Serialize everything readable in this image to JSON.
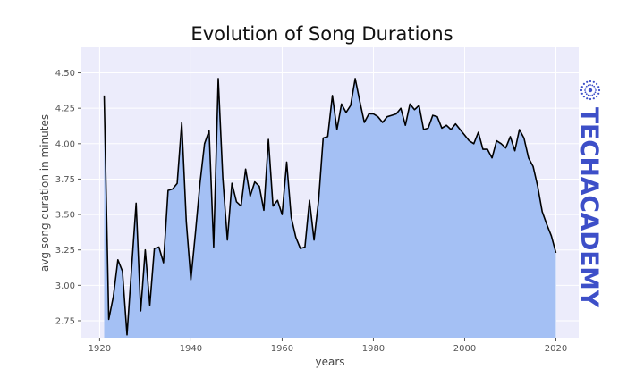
{
  "chart_data": {
    "type": "area",
    "title": "Evolution of Song Durations",
    "xlabel": "years",
    "ylabel": "avg song duration in minutes",
    "xlim": [
      1916,
      2025
    ],
    "ylim": [
      2.63,
      4.68
    ],
    "x_ticks": [
      1920,
      1940,
      1960,
      1980,
      2000,
      2020
    ],
    "x_tick_labels": [
      "1920",
      "1940",
      "1960",
      "1980",
      "2000",
      "2020"
    ],
    "y_ticks": [
      2.75,
      3.0,
      3.25,
      3.5,
      3.75,
      4.0,
      4.25,
      4.5
    ],
    "y_tick_labels": [
      "2.75",
      "3.00",
      "3.25",
      "3.50",
      "3.75",
      "4.00",
      "4.25",
      "4.50"
    ],
    "grid": true,
    "fill_color": "#a4c0f4",
    "line_color": "#000000",
    "plot_background": "#ececfb",
    "series": [
      {
        "x": [
          1921,
          1922,
          1923,
          1924,
          1925,
          1926,
          1927,
          1928,
          1929,
          1930,
          1931,
          1932,
          1933,
          1934,
          1935,
          1936,
          1937,
          1938,
          1939,
          1940,
          1941,
          1942,
          1943,
          1944,
          1945,
          1946,
          1947,
          1948,
          1949,
          1950,
          1951,
          1952,
          1953,
          1954,
          1955,
          1956,
          1957,
          1958,
          1959,
          1960,
          1961,
          1962,
          1963,
          1964,
          1965,
          1966,
          1967,
          1968,
          1969,
          1970,
          1971,
          1972,
          1973,
          1974,
          1975,
          1976,
          1977,
          1978,
          1979,
          1980,
          1981,
          1982,
          1983,
          1984,
          1985,
          1986,
          1987,
          1988,
          1989,
          1990,
          1991,
          1992,
          1993,
          1994,
          1995,
          1996,
          1997,
          1998,
          1999,
          2000,
          2001,
          2002,
          2003,
          2004,
          2005,
          2006,
          2007,
          2008,
          2009,
          2010,
          2011,
          2012,
          2013,
          2014,
          2015,
          2016,
          2017,
          2018,
          2019,
          2020
        ],
        "values": [
          4.34,
          2.76,
          2.92,
          3.18,
          3.1,
          2.65,
          3.12,
          3.58,
          2.82,
          3.25,
          2.86,
          3.26,
          3.27,
          3.16,
          3.67,
          3.68,
          3.72,
          4.15,
          3.45,
          3.04,
          3.37,
          3.72,
          4.0,
          4.09,
          3.27,
          4.46,
          3.76,
          3.32,
          3.72,
          3.59,
          3.56,
          3.82,
          3.63,
          3.73,
          3.7,
          3.53,
          4.03,
          3.56,
          3.6,
          3.5,
          3.87,
          3.48,
          3.34,
          3.26,
          3.27,
          3.6,
          3.32,
          3.6,
          4.04,
          4.05,
          4.34,
          4.1,
          4.28,
          4.22,
          4.27,
          4.46,
          4.3,
          4.15,
          4.21,
          4.21,
          4.19,
          4.15,
          4.19,
          4.2,
          4.21,
          4.25,
          4.13,
          4.28,
          4.24,
          4.27,
          4.1,
          4.11,
          4.2,
          4.19,
          4.11,
          4.13,
          4.1,
          4.14,
          4.1,
          4.06,
          4.02,
          4.0,
          4.08,
          3.96,
          3.96,
          3.9,
          4.02,
          4.0,
          3.97,
          4.05,
          3.95,
          4.1,
          4.04,
          3.9,
          3.84,
          3.7,
          3.52,
          3.43,
          3.35,
          3.23
        ]
      }
    ]
  },
  "watermark": {
    "brand": "TECHACADEMY",
    "icon": "network-burst-icon",
    "color": "#3d4fc8"
  }
}
